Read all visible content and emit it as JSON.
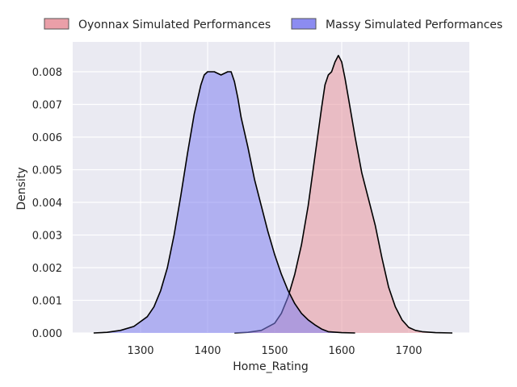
{
  "chart_data": {
    "type": "area",
    "title": "",
    "xlabel": "Home_Rating",
    "ylabel": "Density",
    "xlim": [
      1200,
      1800
    ],
    "ylim": [
      0,
      0.0085
    ],
    "xticks": [
      1300,
      1400,
      1500,
      1600,
      1700
    ],
    "xtick_labels": [
      "1300",
      "1400",
      "1500",
      "1600",
      "1700"
    ],
    "yticks": [
      0,
      0.001,
      0.002,
      0.003,
      0.004,
      0.005,
      0.006,
      0.007,
      0.008
    ],
    "ytick_labels": [
      "0.000",
      "0.001",
      "0.002",
      "0.003",
      "0.004",
      "0.005",
      "0.006",
      "0.007",
      "0.008"
    ],
    "grid": true,
    "legend_placement": "top-center",
    "background": "#eaeaf2",
    "series": [
      {
        "name": "Oyonnax Simulated Performances",
        "color": "#e8959f",
        "points": [
          [
            1440,
            0
          ],
          [
            1460,
            2e-05
          ],
          [
            1480,
            8e-05
          ],
          [
            1500,
            0.0003
          ],
          [
            1510,
            0.0006
          ],
          [
            1520,
            0.0011
          ],
          [
            1530,
            0.0018
          ],
          [
            1540,
            0.0027
          ],
          [
            1550,
            0.0039
          ],
          [
            1560,
            0.0054
          ],
          [
            1570,
            0.0069
          ],
          [
            1575,
            0.0076
          ],
          [
            1580,
            0.0079
          ],
          [
            1585,
            0.008
          ],
          [
            1590,
            0.0083
          ],
          [
            1595,
            0.0085
          ],
          [
            1600,
            0.0083
          ],
          [
            1605,
            0.0078
          ],
          [
            1610,
            0.0072
          ],
          [
            1620,
            0.006
          ],
          [
            1630,
            0.0049
          ],
          [
            1640,
            0.0041
          ],
          [
            1650,
            0.0033
          ],
          [
            1660,
            0.0023
          ],
          [
            1670,
            0.0014
          ],
          [
            1680,
            0.0008
          ],
          [
            1690,
            0.0004
          ],
          [
            1700,
            0.00017
          ],
          [
            1710,
            8e-05
          ],
          [
            1720,
            4e-05
          ],
          [
            1740,
            1e-05
          ],
          [
            1765,
            0
          ]
        ]
      },
      {
        "name": "Massy Simulated Performances",
        "color": "#8080f0",
        "points": [
          [
            1230,
            0
          ],
          [
            1250,
            2e-05
          ],
          [
            1270,
            8e-05
          ],
          [
            1290,
            0.0002
          ],
          [
            1310,
            0.0005
          ],
          [
            1320,
            0.0008
          ],
          [
            1330,
            0.0013
          ],
          [
            1340,
            0.002
          ],
          [
            1350,
            0.003
          ],
          [
            1360,
            0.0042
          ],
          [
            1370,
            0.0055
          ],
          [
            1380,
            0.0067
          ],
          [
            1390,
            0.0076
          ],
          [
            1395,
            0.0079
          ],
          [
            1400,
            0.008
          ],
          [
            1410,
            0.008
          ],
          [
            1420,
            0.0079
          ],
          [
            1430,
            0.008
          ],
          [
            1435,
            0.008
          ],
          [
            1440,
            0.0077
          ],
          [
            1445,
            0.0072
          ],
          [
            1450,
            0.0066
          ],
          [
            1460,
            0.0057
          ],
          [
            1470,
            0.0047
          ],
          [
            1480,
            0.0039
          ],
          [
            1490,
            0.0031
          ],
          [
            1500,
            0.0024
          ],
          [
            1510,
            0.0018
          ],
          [
            1520,
            0.0013
          ],
          [
            1530,
            0.0009
          ],
          [
            1540,
            0.0006
          ],
          [
            1550,
            0.0004
          ],
          [
            1560,
            0.00025
          ],
          [
            1570,
            0.00012
          ],
          [
            1580,
            4e-05
          ],
          [
            1600,
            1e-05
          ],
          [
            1620,
            0
          ]
        ]
      }
    ]
  }
}
